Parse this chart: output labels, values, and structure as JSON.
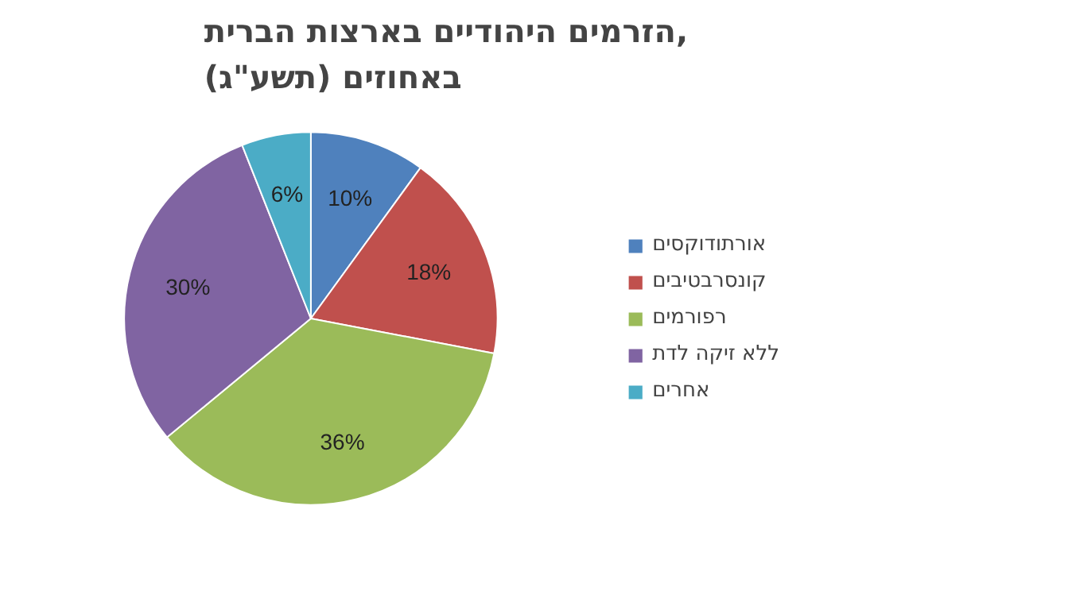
{
  "chart_data": {
    "type": "pie",
    "title": "הזרמים היהודיים בארצות הברית,\nבאחוזים (תשע\"ג)",
    "categories": [
      "אורתודוקסים",
      "קונסרבטיבים",
      "רפורמים",
      "ללא זיקה לדת",
      "אחרים"
    ],
    "values": [
      10,
      18,
      36,
      30,
      6
    ],
    "colors": [
      "#4f81bd",
      "#c0504d",
      "#9bbb59",
      "#8064a2",
      "#4bacc6"
    ],
    "value_labels": [
      "10%",
      "18%",
      "36%",
      "30%",
      "6%"
    ],
    "legend": "right"
  }
}
